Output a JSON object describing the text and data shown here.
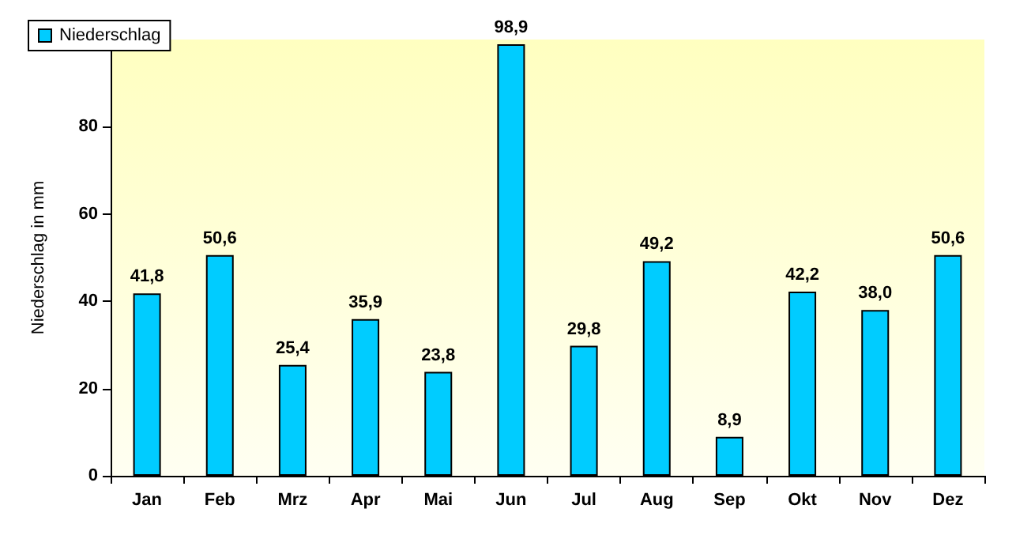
{
  "chart_data": {
    "type": "bar",
    "ylabel": "Niederschlag in mm",
    "categories": [
      "Jan",
      "Feb",
      "Mrz",
      "Apr",
      "Mai",
      "Jun",
      "Jul",
      "Aug",
      "Sep",
      "Okt",
      "Nov",
      "Dez"
    ],
    "series": [
      {
        "name": "Niederschlag",
        "color": "#00ccff",
        "values": [
          41.8,
          50.6,
          25.4,
          35.9,
          23.8,
          98.9,
          29.8,
          49.2,
          8.9,
          42.2,
          38.0,
          50.6
        ],
        "value_labels": [
          "41,8",
          "50,6",
          "25,4",
          "35,9",
          "23,8",
          "98,9",
          "29,8",
          "49,2",
          "8,9",
          "42,2",
          "38,0",
          "50,6"
        ]
      }
    ],
    "ylim": [
      0,
      100
    ],
    "yticks": [
      0,
      20,
      40,
      60,
      80
    ],
    "grid": false,
    "legend": "top left"
  }
}
